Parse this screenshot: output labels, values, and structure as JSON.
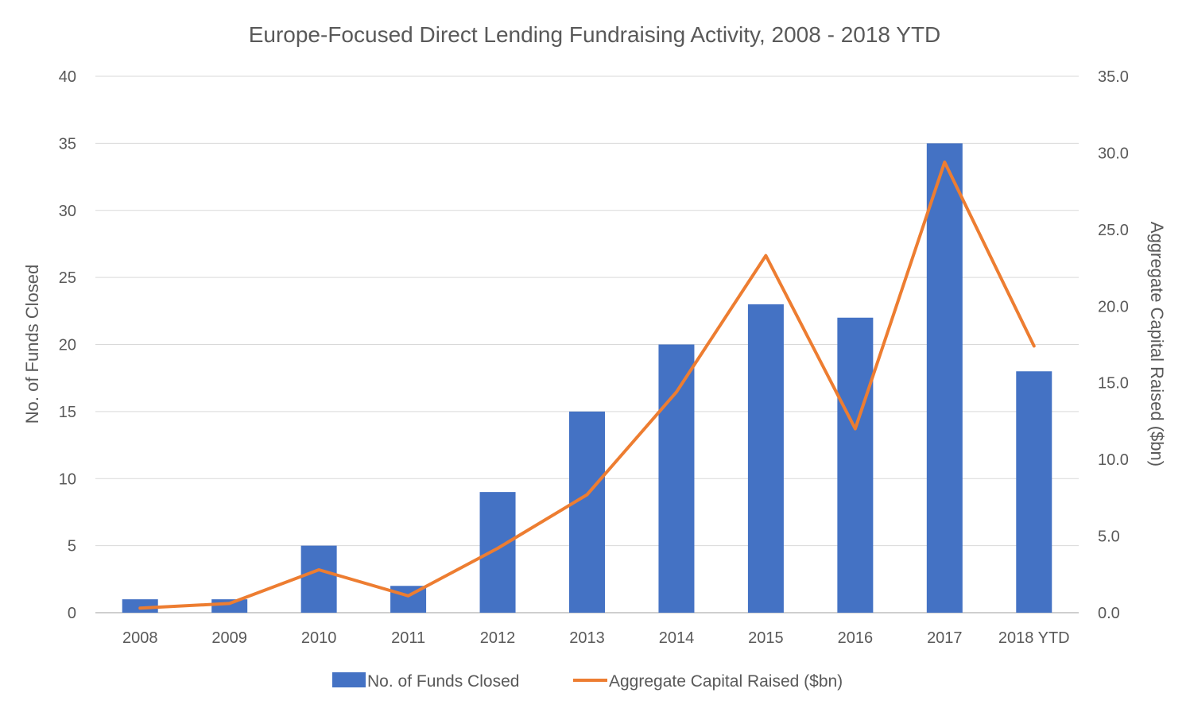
{
  "chart_data": {
    "type": "bar",
    "title": "Europe-Focused Direct Lending Fundraising Activity, 2008 - 2018 YTD",
    "categories": [
      "2008",
      "2009",
      "2010",
      "2011",
      "2012",
      "2013",
      "2014",
      "2015",
      "2016",
      "2017",
      "2018 YTD"
    ],
    "series": [
      {
        "name": "No. of Funds Closed",
        "type": "bar",
        "axis": "left",
        "color": "#4472C4",
        "values": [
          1,
          1,
          5,
          2,
          9,
          15,
          20,
          23,
          22,
          35,
          18
        ]
      },
      {
        "name": "Aggregate Capital Raised ($bn)",
        "type": "line",
        "axis": "right",
        "color": "#ED7D31",
        "values": [
          0.3,
          0.6,
          2.8,
          1.1,
          4.2,
          7.7,
          14.4,
          23.3,
          12.0,
          29.4,
          17.4
        ]
      }
    ],
    "y_left": {
      "label": "No. of Funds Closed",
      "ylim": [
        0,
        40
      ],
      "ticks": [
        "0",
        "5",
        "10",
        "15",
        "20",
        "25",
        "30",
        "35",
        "40"
      ]
    },
    "y_right": {
      "label": "Aggregate Capital Raised ($bn)",
      "ylim": [
        0,
        35
      ],
      "ticks": [
        "0.0",
        "5.0",
        "10.0",
        "15.0",
        "20.0",
        "25.0",
        "30.0",
        "35.0"
      ]
    },
    "grid": true,
    "legend_position": "bottom",
    "gridline_color": "#D9D9D9",
    "text_color": "#595959"
  }
}
